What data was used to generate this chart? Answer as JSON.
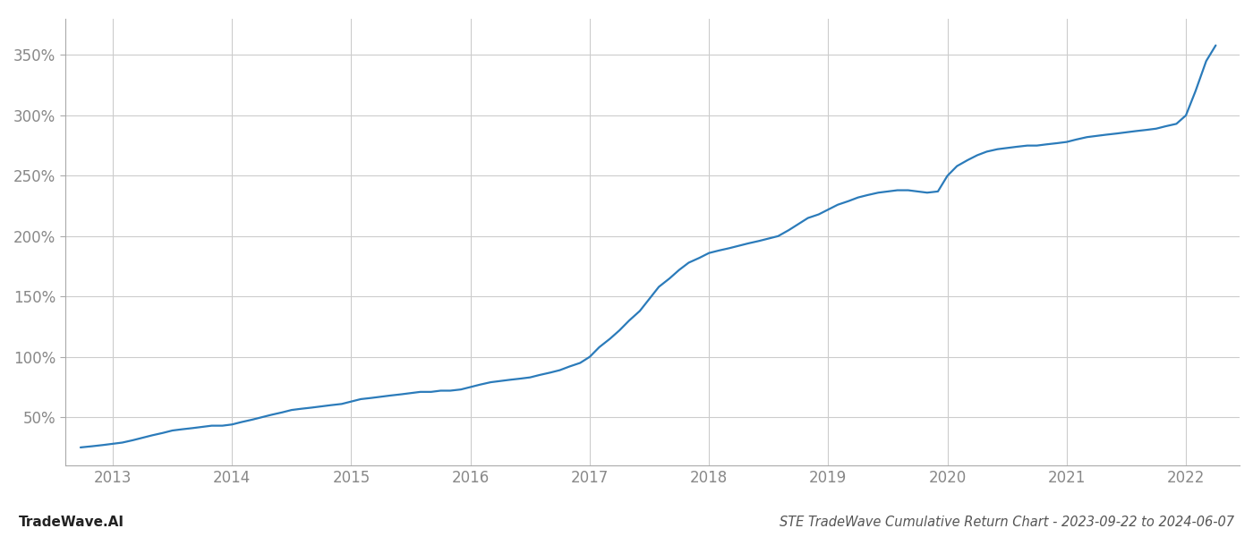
{
  "title": "STE TradeWave Cumulative Return Chart - 2023-09-22 to 2024-06-07",
  "watermark": "TradeWave.AI",
  "line_color": "#2b7bba",
  "background_color": "#ffffff",
  "grid_color": "#cccccc",
  "x_years": [
    2013,
    2014,
    2015,
    2016,
    2017,
    2018,
    2019,
    2020,
    2021,
    2022
  ],
  "y_ticks": [
    50,
    100,
    150,
    200,
    250,
    300,
    350
  ],
  "xlim": [
    2012.6,
    2022.45
  ],
  "ylim": [
    10,
    380
  ],
  "x_data": [
    2012.73,
    2012.83,
    2012.92,
    2013.0,
    2013.08,
    2013.17,
    2013.25,
    2013.33,
    2013.42,
    2013.5,
    2013.58,
    2013.67,
    2013.75,
    2013.83,
    2013.92,
    2014.0,
    2014.08,
    2014.17,
    2014.25,
    2014.33,
    2014.42,
    2014.5,
    2014.58,
    2014.67,
    2014.75,
    2014.83,
    2014.92,
    2015.0,
    2015.08,
    2015.17,
    2015.25,
    2015.33,
    2015.42,
    2015.5,
    2015.58,
    2015.67,
    2015.75,
    2015.83,
    2015.92,
    2016.0,
    2016.08,
    2016.17,
    2016.25,
    2016.33,
    2016.42,
    2016.5,
    2016.58,
    2016.67,
    2016.75,
    2016.83,
    2016.92,
    2017.0,
    2017.08,
    2017.17,
    2017.25,
    2017.33,
    2017.42,
    2017.5,
    2017.58,
    2017.67,
    2017.75,
    2017.83,
    2017.92,
    2018.0,
    2018.08,
    2018.17,
    2018.25,
    2018.33,
    2018.42,
    2018.5,
    2018.58,
    2018.67,
    2018.75,
    2018.83,
    2018.92,
    2019.0,
    2019.08,
    2019.17,
    2019.25,
    2019.33,
    2019.42,
    2019.5,
    2019.58,
    2019.67,
    2019.75,
    2019.83,
    2019.92,
    2020.0,
    2020.08,
    2020.17,
    2020.25,
    2020.33,
    2020.42,
    2020.5,
    2020.58,
    2020.67,
    2020.75,
    2020.83,
    2020.92,
    2021.0,
    2021.08,
    2021.17,
    2021.25,
    2021.33,
    2021.42,
    2021.5,
    2021.58,
    2021.67,
    2021.75,
    2021.83,
    2021.92,
    2022.0,
    2022.08,
    2022.17,
    2022.25
  ],
  "y_data": [
    25,
    26,
    27,
    28,
    29,
    31,
    33,
    35,
    37,
    39,
    40,
    41,
    42,
    43,
    43,
    44,
    46,
    48,
    50,
    52,
    54,
    56,
    57,
    58,
    59,
    60,
    61,
    63,
    65,
    66,
    67,
    68,
    69,
    70,
    71,
    71,
    72,
    72,
    73,
    75,
    77,
    79,
    80,
    81,
    82,
    83,
    85,
    87,
    89,
    92,
    95,
    100,
    108,
    115,
    122,
    130,
    138,
    148,
    158,
    165,
    172,
    178,
    182,
    186,
    188,
    190,
    192,
    194,
    196,
    198,
    200,
    205,
    210,
    215,
    218,
    222,
    226,
    229,
    232,
    234,
    236,
    237,
    238,
    238,
    237,
    236,
    237,
    250,
    258,
    263,
    267,
    270,
    272,
    273,
    274,
    275,
    275,
    276,
    277,
    278,
    280,
    282,
    283,
    284,
    285,
    286,
    287,
    288,
    289,
    291,
    293,
    300,
    320,
    345,
    358
  ],
  "title_fontsize": 10.5,
  "tick_fontsize": 12,
  "watermark_fontsize": 11,
  "line_width": 1.6,
  "axis_label_color": "#888888",
  "title_color": "#555555",
  "spine_color": "#aaaaaa"
}
